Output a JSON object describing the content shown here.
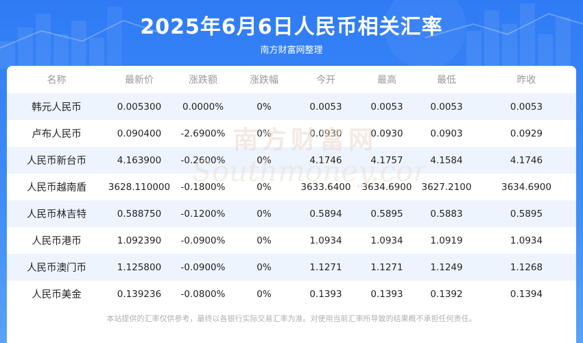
{
  "header": {
    "title": "2025年6月6日人民币相关汇率",
    "subtitle": "南方财富网整理"
  },
  "table": {
    "columns": [
      "名称",
      "最新价",
      "涨跌额",
      "涨跌幅",
      "今开",
      "最高",
      "最低",
      "昨收"
    ],
    "rows": [
      [
        "韩元人民币",
        "0.005300",
        "0.0000%",
        "0%",
        "0.0053",
        "0.0053",
        "0.0053",
        "0.0053"
      ],
      [
        "卢布人民币",
        "0.090400",
        "-2.6900%",
        "0%",
        "0.0930",
        "0.0930",
        "0.0903",
        "0.0929"
      ],
      [
        "人民币新台币",
        "4.163900",
        "-0.2600%",
        "0%",
        "4.1746",
        "4.1757",
        "4.1584",
        "4.1746"
      ],
      [
        "人民币越南盾",
        "3628.110000",
        "-0.1800%",
        "0%",
        "3633.6400",
        "3634.6900",
        "3627.2100",
        "3634.6900"
      ],
      [
        "人民币林吉特",
        "0.588750",
        "-0.1200%",
        "0%",
        "0.5894",
        "0.5895",
        "0.5883",
        "0.5895"
      ],
      [
        "人民币港币",
        "1.092390",
        "-0.0900%",
        "0%",
        "1.0934",
        "1.0934",
        "1.0919",
        "1.0934"
      ],
      [
        "人民币澳门币",
        "1.125800",
        "-0.0900%",
        "0%",
        "1.1271",
        "1.1271",
        "1.1249",
        "1.1268"
      ],
      [
        "人民币美金",
        "0.139236",
        "-0.0800%",
        "0%",
        "0.1393",
        "0.1393",
        "0.1392",
        "0.1394"
      ]
    ]
  },
  "watermark": {
    "cn": "南方财富网",
    "en": "Southmoney.com"
  },
  "footer": {
    "disclaimer": "本站提供的汇率仅供参考，最终以各银行实际交易汇率为准。对使用当前汇率所导致的结果概不承担任何责任。"
  },
  "colors": {
    "header_bg": "#2f7bf5",
    "row_stripe": "#eef4fe",
    "header_text": "#999999",
    "body_text": "#222222",
    "watermark": "#e8d9cc"
  }
}
